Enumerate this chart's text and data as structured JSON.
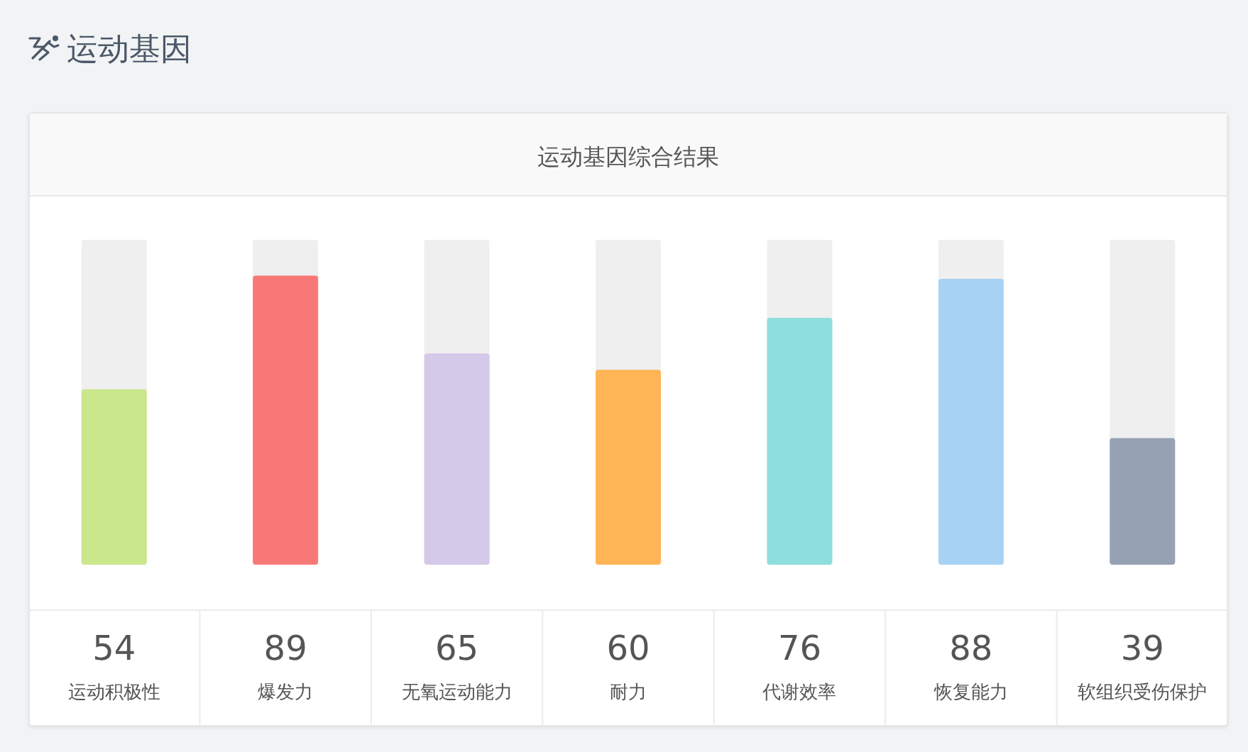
{
  "chart_data": {
    "type": "bar",
    "title": "运动基因",
    "subtitle": "运动基因综合结果",
    "categories": [
      "运动积极性",
      "爆发力",
      "无氧运动能力",
      "耐力",
      "代谢效率",
      "恢复能力",
      "软组织受伤保护"
    ],
    "values": [
      54,
      89,
      65,
      60,
      76,
      88,
      39
    ],
    "colors": [
      "#cbe78c",
      "#f87777",
      "#d5c9e9",
      "#ffb456",
      "#8fdede",
      "#a7d2f3",
      "#96a1b4"
    ],
    "ylim": [
      0,
      100
    ],
    "data_labels": true,
    "tick_labels": "x"
  }
}
